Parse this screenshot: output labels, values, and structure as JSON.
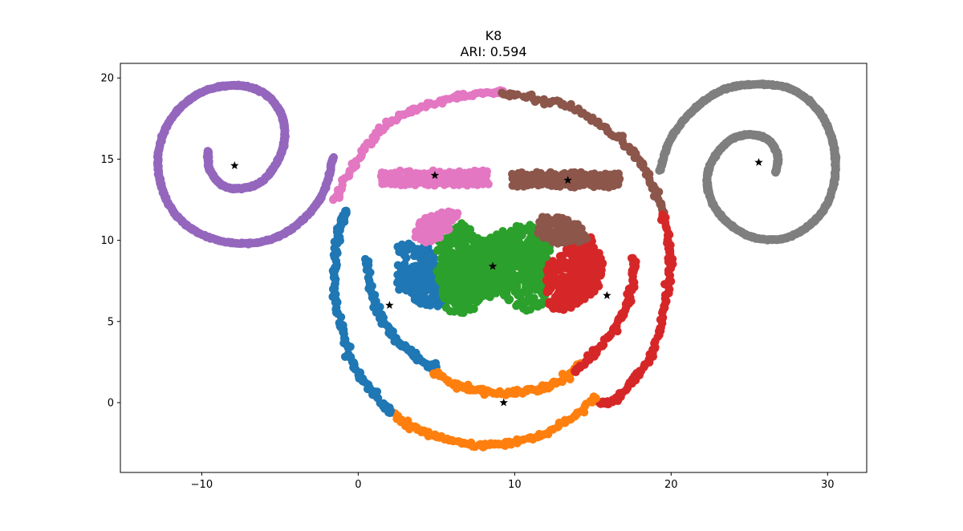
{
  "chart_data": {
    "type": "scatter",
    "title": "K8",
    "subtitle": "ARI: 0.594",
    "xlabel": "",
    "ylabel": "",
    "xlim": [
      -15.2,
      32.5
    ],
    "ylim": [
      -4.3,
      20.9
    ],
    "xticks": [
      -10,
      0,
      10,
      20,
      30
    ],
    "xtick_labels": [
      "−10",
      "0",
      "10",
      "20",
      "30"
    ],
    "yticks": [
      0,
      5,
      10,
      15,
      20
    ],
    "yticks_labels": [
      "0",
      "5",
      "10",
      "15",
      "20"
    ],
    "grid": false,
    "legend": "none",
    "colors": {
      "c0": "#1f77b4",
      "c1": "#ff7f0e",
      "c2": "#2ca02c",
      "c3": "#d62728",
      "c4": "#9467bd",
      "c5": "#8c564b",
      "c6": "#e377c2",
      "c7": "#7f7f7f",
      "centroid": "#000000"
    },
    "series": [
      {
        "color": "c4",
        "shape": "spiral",
        "center": [
          -7.9,
          14.6
        ],
        "points": [
          [
            -9.6,
            15.5
          ],
          [
            -9.5,
            14.4
          ],
          [
            -8.7,
            13.4
          ],
          [
            -7.5,
            13.2
          ],
          [
            -6.2,
            13.6
          ],
          [
            -5.2,
            14.8
          ],
          [
            -4.7,
            16.2
          ],
          [
            -4.9,
            17.7
          ],
          [
            -5.8,
            18.9
          ],
          [
            -7.3,
            19.5
          ],
          [
            -9.2,
            19.4
          ],
          [
            -11.0,
            18.5
          ],
          [
            -12.3,
            16.9
          ],
          [
            -12.8,
            14.9
          ],
          [
            -12.4,
            12.8
          ],
          [
            -11.3,
            11.2
          ],
          [
            -9.6,
            10.2
          ],
          [
            -7.4,
            9.8
          ],
          [
            -5.2,
            10.2
          ],
          [
            -3.4,
            11.4
          ],
          [
            -2.2,
            13.0
          ],
          [
            -1.6,
            15.1
          ]
        ]
      },
      {
        "color": "c7",
        "shape": "spiral",
        "center": [
          25.6,
          14.8
        ],
        "points": [
          [
            26.7,
            14.2
          ],
          [
            26.8,
            15.2
          ],
          [
            26.3,
            16.1
          ],
          [
            25.3,
            16.5
          ],
          [
            24.0,
            16.3
          ],
          [
            22.9,
            15.3
          ],
          [
            22.3,
            13.9
          ],
          [
            22.6,
            12.4
          ],
          [
            23.6,
            11.1
          ],
          [
            25.2,
            10.2
          ],
          [
            27.1,
            10.1
          ],
          [
            28.8,
            10.9
          ],
          [
            30.0,
            12.3
          ],
          [
            30.5,
            14.2
          ],
          [
            30.3,
            16.2
          ],
          [
            29.4,
            18.0
          ],
          [
            27.7,
            19.3
          ],
          [
            25.6,
            19.6
          ],
          [
            23.4,
            19.3
          ],
          [
            21.5,
            18.1
          ],
          [
            20.0,
            16.3
          ],
          [
            19.3,
            14.3
          ]
        ]
      },
      {
        "color": "c6",
        "shape": "bar",
        "center": [
          4.9,
          14.0
        ],
        "points": [
          [
            1.5,
            13.4
          ],
          [
            8.5,
            14.2
          ]
        ]
      },
      {
        "color": "c5",
        "shape": "bar",
        "center": [
          13.4,
          13.7
        ],
        "points": [
          [
            9.9,
            13.3
          ],
          [
            16.8,
            14.1
          ]
        ]
      },
      {
        "color": "c6",
        "shape": "arc",
        "center": [
          4.9,
          14.0
        ],
        "points": [
          [
            -1.4,
            12.5
          ],
          [
            -0.8,
            13.8
          ],
          [
            0.2,
            15.3
          ],
          [
            1.2,
            16.5
          ],
          [
            2.4,
            17.5
          ],
          [
            4.0,
            18.2
          ],
          [
            5.8,
            18.7
          ],
          [
            7.5,
            19.0
          ],
          [
            9.1,
            19.1
          ]
        ]
      },
      {
        "color": "c5",
        "shape": "arc",
        "center": [
          13.4,
          13.7
        ],
        "points": [
          [
            9.3,
            19.0
          ],
          [
            11.5,
            18.7
          ],
          [
            13.5,
            18.2
          ],
          [
            15.3,
            17.2
          ],
          [
            17.0,
            16.0
          ],
          [
            18.2,
            14.6
          ],
          [
            19.0,
            13.0
          ],
          [
            19.5,
            11.7
          ]
        ]
      },
      {
        "color": "c3",
        "shape": "arc",
        "center": [
          15.9,
          6.6
        ],
        "points": [
          [
            19.5,
            11.6
          ],
          [
            19.8,
            10.0
          ],
          [
            19.9,
            8.4
          ],
          [
            19.7,
            6.6
          ],
          [
            19.3,
            4.6
          ],
          [
            18.7,
            2.9
          ],
          [
            17.6,
            1.4
          ],
          [
            16.3,
            0.1
          ],
          [
            15.5,
            0.0
          ]
        ]
      },
      {
        "color": "c1",
        "shape": "arc",
        "center": [
          9.3,
          0.0
        ],
        "points": [
          [
            15.2,
            0.4
          ],
          [
            14.0,
            -0.7
          ],
          [
            12.5,
            -1.6
          ],
          [
            10.8,
            -2.3
          ],
          [
            9.0,
            -2.6
          ],
          [
            7.3,
            -2.6
          ],
          [
            5.7,
            -2.3
          ],
          [
            4.3,
            -1.8
          ],
          [
            3.1,
            -1.3
          ],
          [
            2.1,
            -0.6
          ]
        ]
      },
      {
        "color": "c0",
        "shape": "arc",
        "center": [
          2.0,
          6.0
        ],
        "points": [
          [
            2.0,
            -0.6
          ],
          [
            1.0,
            0.5
          ],
          [
            0.0,
            1.8
          ],
          [
            -0.7,
            3.3
          ],
          [
            -1.2,
            5.0
          ],
          [
            -1.5,
            6.8
          ],
          [
            -1.5,
            8.5
          ],
          [
            -1.3,
            10.0
          ],
          [
            -1.0,
            11.2
          ],
          [
            -0.8,
            11.8
          ]
        ]
      },
      {
        "color": "c0",
        "shape": "arc",
        "center": [
          2.0,
          6.0
        ],
        "points": [
          [
            0.6,
            8.8
          ],
          [
            0.8,
            7.2
          ],
          [
            1.3,
            5.6
          ],
          [
            2.1,
            4.3
          ],
          [
            3.1,
            3.3
          ],
          [
            4.2,
            2.5
          ],
          [
            5.0,
            2.2
          ]
        ]
      },
      {
        "color": "c1",
        "shape": "arc",
        "center": [
          9.3,
          0.0
        ],
        "points": [
          [
            4.9,
            1.9
          ],
          [
            6.1,
            1.2
          ],
          [
            7.5,
            0.8
          ],
          [
            9.0,
            0.6
          ],
          [
            10.5,
            0.7
          ],
          [
            12.0,
            1.0
          ],
          [
            13.2,
            1.5
          ],
          [
            14.3,
            2.4
          ]
        ]
      },
      {
        "color": "c3",
        "shape": "arc",
        "center": [
          15.9,
          6.6
        ],
        "points": [
          [
            13.9,
            2.0
          ],
          [
            15.0,
            2.9
          ],
          [
            16.0,
            4.0
          ],
          [
            16.8,
            5.2
          ],
          [
            17.3,
            6.5
          ],
          [
            17.6,
            7.8
          ],
          [
            17.6,
            8.9
          ]
        ]
      },
      {
        "color": "c0",
        "shape": "blob",
        "center": [
          2.0,
          6.0
        ],
        "points": [
          [
            2.5,
            9.8
          ],
          [
            4.5,
            9.8
          ],
          [
            5.2,
            8.0
          ],
          [
            5.5,
            5.8
          ],
          [
            4.0,
            6.0
          ],
          [
            2.5,
            7.0
          ]
        ]
      },
      {
        "color": "c2",
        "shape": "blob",
        "center": [
          8.6,
          8.4
        ],
        "points": [
          [
            5.0,
            9.8
          ],
          [
            6.5,
            11.2
          ],
          [
            8.0,
            10.0
          ],
          [
            9.5,
            10.8
          ],
          [
            11.0,
            11.0
          ],
          [
            12.3,
            9.5
          ],
          [
            12.0,
            6.0
          ],
          [
            10.5,
            5.6
          ],
          [
            9.0,
            6.8
          ],
          [
            7.0,
            5.5
          ],
          [
            5.7,
            5.6
          ],
          [
            5.0,
            8.0
          ]
        ]
      },
      {
        "color": "c3",
        "shape": "blob",
        "center": [
          15.9,
          6.6
        ],
        "points": [
          [
            12.0,
            8.5
          ],
          [
            13.5,
            9.8
          ],
          [
            15.0,
            10.3
          ],
          [
            15.7,
            8.5
          ],
          [
            15.4,
            7.0
          ],
          [
            14.0,
            5.8
          ],
          [
            12.3,
            5.6
          ],
          [
            12.0,
            7.0
          ]
        ]
      },
      {
        "color": "c6",
        "shape": "blob",
        "center": [
          4.9,
          14.0
        ],
        "points": [
          [
            3.4,
            10.0
          ],
          [
            4.0,
            11.3
          ],
          [
            5.5,
            11.8
          ],
          [
            6.5,
            11.7
          ],
          [
            5.5,
            10.2
          ],
          [
            4.3,
            9.8
          ]
        ]
      },
      {
        "color": "c5",
        "shape": "blob",
        "center": [
          13.4,
          13.7
        ],
        "points": [
          [
            11.2,
            10.8
          ],
          [
            11.8,
            11.5
          ],
          [
            13.0,
            11.4
          ],
          [
            14.5,
            10.8
          ],
          [
            14.7,
            10.0
          ],
          [
            13.0,
            9.7
          ],
          [
            11.8,
            10.1
          ]
        ]
      }
    ],
    "centroids": [
      [
        -7.9,
        14.6
      ],
      [
        25.6,
        14.8
      ],
      [
        4.9,
        14.0
      ],
      [
        13.4,
        13.7
      ],
      [
        8.6,
        8.4
      ],
      [
        2.0,
        6.0
      ],
      [
        15.9,
        6.6
      ],
      [
        9.3,
        0.0
      ]
    ]
  }
}
